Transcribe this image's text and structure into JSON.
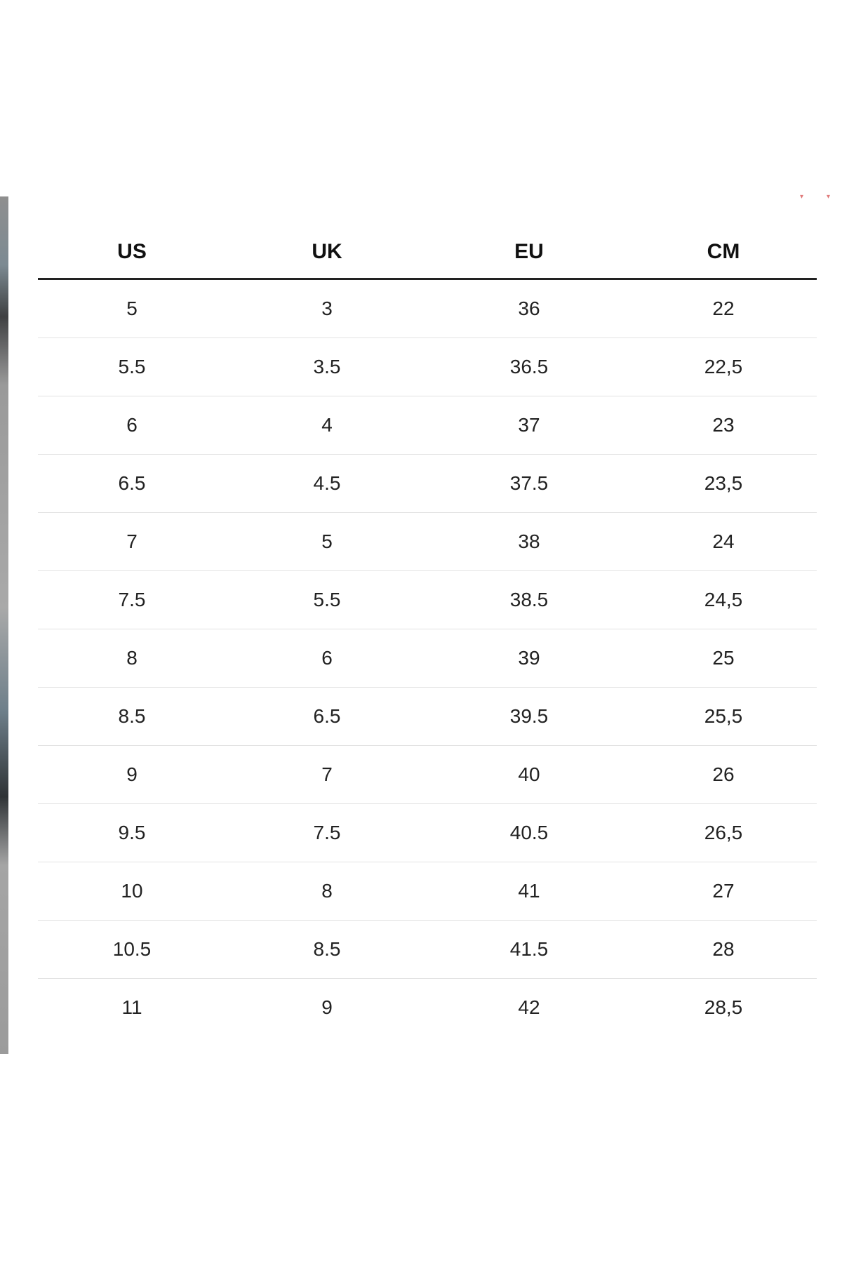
{
  "size_chart": {
    "headers": [
      "US",
      "UK",
      "EU",
      "CM"
    ],
    "rows": [
      [
        "5",
        "3",
        "36",
        "22"
      ],
      [
        "5.5",
        "3.5",
        "36.5",
        "22,5"
      ],
      [
        "6",
        "4",
        "37",
        "23"
      ],
      [
        "6.5",
        "4.5",
        "37.5",
        "23,5"
      ],
      [
        "7",
        "5",
        "38",
        "24"
      ],
      [
        "7.5",
        "5.5",
        "38.5",
        "24,5"
      ],
      [
        "8",
        "6",
        "39",
        "25"
      ],
      [
        "8.5",
        "6.5",
        "39.5",
        "25,5"
      ],
      [
        "9",
        "7",
        "40",
        "26"
      ],
      [
        "9.5",
        "7.5",
        "40.5",
        "26,5"
      ],
      [
        "10",
        "8",
        "41",
        "27"
      ],
      [
        "10.5",
        "8.5",
        "41.5",
        "28"
      ],
      [
        "11",
        "9",
        "42",
        "28,5"
      ]
    ]
  },
  "colors": {
    "header_text": "#111111",
    "cell_text": "#222222",
    "header_rule": "#222222",
    "row_rule": "#e2e2e2",
    "corner_mark": "#e07a7a"
  }
}
